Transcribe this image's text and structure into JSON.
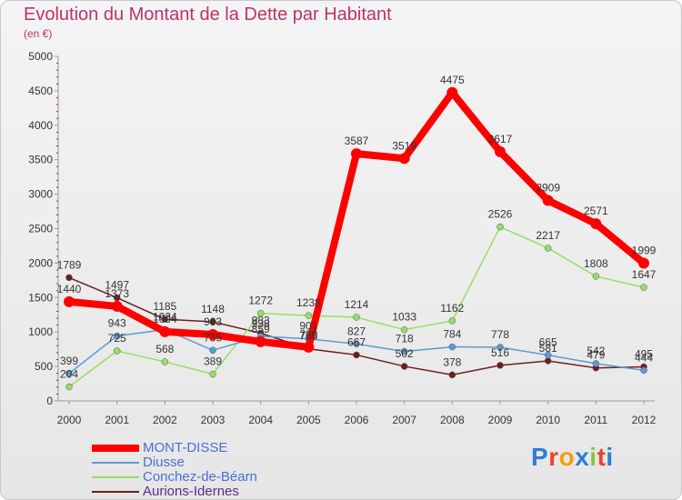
{
  "chart_data": {
    "type": "line",
    "title": "Evolution du Montant de la Dette par Habitant",
    "subtitle": "(en €)",
    "categories": [
      "2000",
      "2001",
      "2002",
      "2003",
      "2004",
      "2005",
      "2006",
      "2007",
      "2008",
      "2009",
      "2010",
      "2011",
      "2012"
    ],
    "ylim": [
      0,
      5000
    ],
    "yticks": [
      0,
      500,
      1000,
      1500,
      2000,
      2500,
      3000,
      3500,
      4000,
      4500,
      5000
    ],
    "grid": false,
    "legend_position": "bottom-left",
    "series": [
      {
        "name": "MONT-DISSE",
        "color": "#ff0000",
        "values": [
          1440,
          1373,
          1004,
          963,
          859,
          780,
          3587,
          3519,
          4475,
          3617,
          2909,
          2571,
          1999
        ],
        "labels": [
          "1440",
          "1373",
          "1004",
          "963",
          "859",
          "780",
          "3587",
          "3519",
          "4475",
          "3617",
          "2909",
          "2571",
          "1999"
        ]
      },
      {
        "name": "Diusse",
        "color": "#5b9bd5",
        "values": [
          399,
          943,
          1034,
          735,
          938,
          901,
          827,
          718,
          784,
          778,
          665,
          542,
          444
        ],
        "labels": [
          "399",
          "943",
          "1034",
          "735",
          "938",
          "901",
          "827",
          "718",
          "784",
          "778",
          "665",
          "542",
          "444"
        ]
      },
      {
        "name": "Conchez-de-Béarn",
        "color": "#99dd66",
        "values": [
          204,
          725,
          568,
          389,
          1272,
          1238,
          1214,
          1033,
          1162,
          2526,
          2217,
          1808,
          1647
        ],
        "labels": [
          "204",
          "725",
          "568",
          "389",
          "1272",
          "1238",
          "1214",
          "1033",
          "1162",
          "2526",
          "2217",
          "1808",
          "1647"
        ]
      },
      {
        "name": "Aurions-Idernes",
        "color": "#6b1f1f",
        "values": [
          1789,
          1497,
          1185,
          1148,
          983,
          756,
          667,
          502,
          378,
          516,
          581,
          479,
          495
        ],
        "labels": [
          "1789",
          "1497",
          "1185",
          "1148",
          "983",
          "756",
          "667",
          "502",
          "378",
          "516",
          "581",
          "479",
          "495"
        ]
      }
    ]
  },
  "logo": {
    "text": "Proxiti",
    "letter_colors": [
      "#2e7dd1",
      "#e8452c",
      "#f39c12",
      "#2e7dd1",
      "#8bc34a",
      "#e8452c",
      "#2e7dd1"
    ]
  }
}
